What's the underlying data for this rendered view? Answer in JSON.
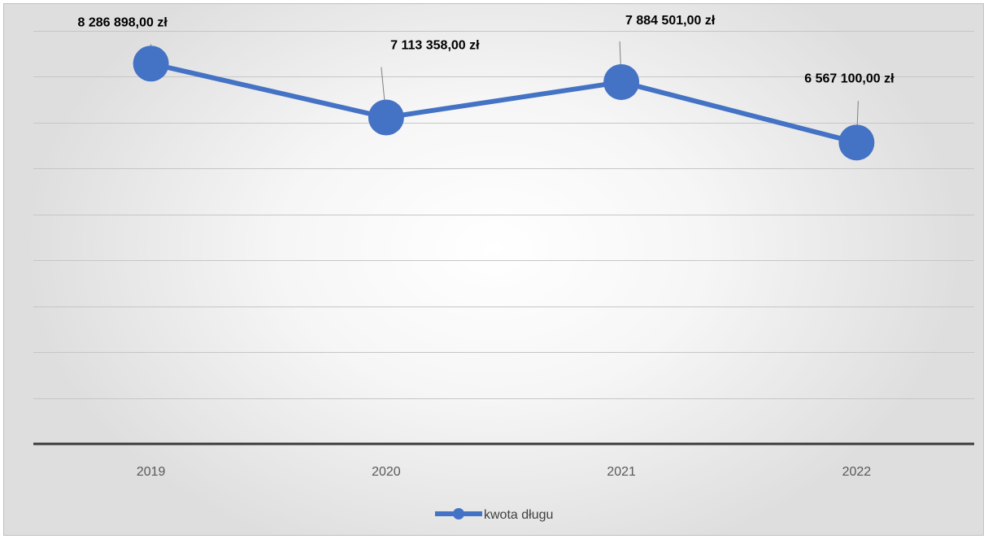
{
  "chart_data": {
    "type": "line",
    "categories": [
      "2019",
      "2020",
      "2021",
      "2022"
    ],
    "series": [
      {
        "name": "kwota długu",
        "values": [
          8286898,
          7113358,
          7884501,
          6567100
        ],
        "data_labels": [
          "8 286 898,00 zł",
          "7 113 358,00 zł",
          "7 884 501,00 zł",
          "6 567 100,00 zł"
        ],
        "color": "#4472c4"
      }
    ],
    "title": "",
    "xlabel": "",
    "ylabel": "",
    "ylim": [
      0,
      9000000
    ],
    "y_tick_step": 1000000,
    "grid": true,
    "y_tick_labels_shown": false,
    "legend_position": "bottom",
    "colors": {
      "axis": "#3a3a3a",
      "grid": "#c6c6c6"
    }
  }
}
